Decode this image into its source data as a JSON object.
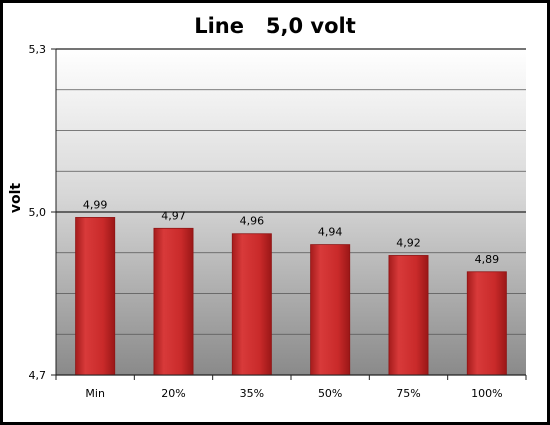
{
  "chart_data": {
    "type": "bar",
    "title": "Line   5,0 volt",
    "ylabel": "volt",
    "xlabel": "",
    "categories": [
      "Min",
      "20%",
      "35%",
      "50%",
      "75%",
      "100%"
    ],
    "values": [
      4.99,
      4.97,
      4.96,
      4.94,
      4.92,
      4.89
    ],
    "value_labels": [
      "4,99",
      "4,97",
      "4,96",
      "4,94",
      "4,92",
      "4,89"
    ],
    "ylim": [
      4.7,
      5.3
    ],
    "yticks": [
      4.7,
      5.0,
      5.3
    ],
    "ytick_labels": [
      "4,7",
      "5,0",
      "5,3"
    ],
    "gridlines": [
      4.7,
      4.775,
      4.85,
      4.925,
      5.0,
      5.075,
      5.15,
      5.225,
      5.3
    ],
    "grid": true,
    "legend": "none",
    "colors": {
      "bar": "#cc2a2a",
      "bar_edge": "#8f1414",
      "grid": "#555555",
      "plot_top": "#ffffff",
      "plot_bottom": "#8a8a8a"
    }
  }
}
